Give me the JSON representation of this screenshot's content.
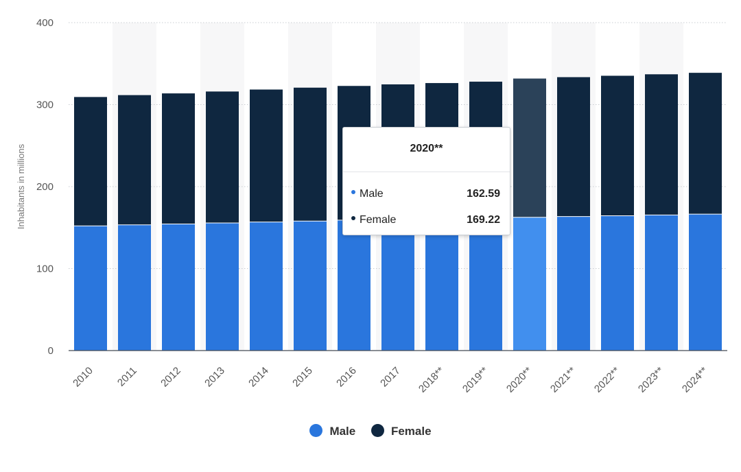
{
  "chart_data": {
    "type": "bar",
    "stacked": true,
    "categories": [
      "2010",
      "2011",
      "2012",
      "2013",
      "2014",
      "2015",
      "2016",
      "2017",
      "2018**",
      "2019**",
      "2020**",
      "2021**",
      "2022**",
      "2023**",
      "2024**"
    ],
    "series": [
      {
        "name": "Male",
        "values": [
          152.1,
          153.3,
          154.4,
          155.6,
          156.8,
          158.0,
          159.1,
          160.1,
          160.9,
          161.7,
          162.59,
          163.5,
          164.4,
          165.4,
          166.4
        ],
        "color": "#2a76dd"
      },
      {
        "name": "Female",
        "values": [
          157.2,
          158.3,
          159.3,
          160.4,
          161.6,
          162.7,
          163.7,
          164.6,
          165.4,
          166.3,
          169.22,
          170.0,
          170.8,
          171.6,
          172.4
        ],
        "color": "#0f2740"
      }
    ],
    "ylabel": "Inhabitants in millions",
    "ylim": [
      0,
      400
    ],
    "yticks": [
      0,
      100,
      200,
      300,
      400
    ],
    "grid": true,
    "legend_position": "bottom",
    "highlighted_category": "2020**",
    "highlight_colors": {
      "Male": "#418fee",
      "Female": "#2b4259"
    },
    "tooltip": {
      "title": "2020**",
      "rows": [
        {
          "label": "Male",
          "value": "162.59",
          "color": "#2a76dd"
        },
        {
          "label": "Female",
          "value": "169.22",
          "color": "#0f2740"
        }
      ]
    }
  }
}
